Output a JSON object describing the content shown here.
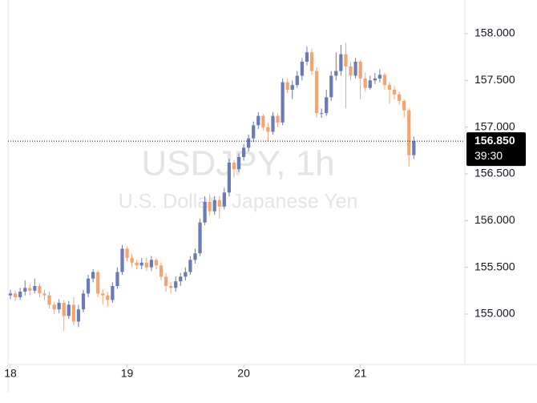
{
  "chart_data": {
    "type": "candlestick",
    "title": "USDJPY, 1h",
    "subtitle": "U.S. Dollar / Japanese Yen",
    "up_color": "#6b7bb3",
    "down_color": "#f4a46f",
    "x": [
      0,
      1,
      2,
      3,
      4,
      5,
      6,
      7,
      8,
      9,
      10,
      11,
      12,
      13,
      14,
      15,
      16,
      17,
      18,
      19,
      20,
      21,
      22,
      23,
      24,
      25,
      26,
      27,
      28,
      29,
      30,
      31,
      32,
      33,
      34,
      35,
      36,
      37,
      38,
      39,
      40,
      41,
      42,
      43,
      44,
      45,
      46,
      47,
      48,
      49,
      50,
      51,
      52,
      53,
      54,
      55,
      56,
      57,
      58,
      59,
      60,
      61,
      62,
      63,
      64,
      65,
      66,
      67,
      68,
      69,
      70,
      71,
      72,
      73,
      74,
      75,
      76,
      77,
      78,
      79,
      80,
      81,
      82,
      83
    ],
    "open": [
      155.2,
      155.22,
      155.18,
      155.24,
      155.28,
      155.25,
      155.3,
      155.22,
      155.2,
      155.1,
      155.05,
      155.12,
      154.98,
      155.1,
      154.92,
      155.05,
      155.22,
      155.38,
      155.45,
      155.22,
      155.2,
      155.15,
      155.3,
      155.45,
      155.7,
      155.6,
      155.55,
      155.52,
      155.55,
      155.5,
      155.58,
      155.52,
      155.4,
      155.3,
      155.28,
      155.35,
      155.4,
      155.45,
      155.58,
      155.65,
      155.98,
      156.2,
      156.1,
      156.22,
      156.15,
      156.3,
      156.62,
      156.55,
      156.68,
      156.78,
      156.88,
      157.02,
      157.12,
      157.0,
      156.95,
      157.12,
      157.05,
      157.48,
      157.4,
      157.45,
      157.55,
      157.7,
      157.8,
      157.6,
      157.15,
      157.15,
      157.32,
      157.55,
      157.6,
      157.78,
      157.65,
      157.55,
      157.7,
      157.52,
      157.42,
      157.5,
      157.52,
      157.56,
      157.45,
      157.4,
      157.35,
      157.28,
      157.18,
      156.7
    ],
    "high": [
      155.26,
      155.25,
      155.28,
      155.36,
      155.32,
      155.38,
      155.33,
      155.26,
      155.24,
      155.13,
      155.16,
      155.15,
      155.14,
      155.18,
      155.1,
      155.26,
      155.42,
      155.48,
      155.47,
      155.26,
      155.24,
      155.34,
      155.5,
      155.74,
      155.72,
      155.64,
      155.58,
      155.6,
      155.6,
      155.62,
      155.6,
      155.55,
      155.44,
      155.34,
      155.4,
      155.44,
      155.5,
      155.62,
      155.7,
      156.02,
      156.26,
      156.28,
      156.26,
      156.26,
      156.35,
      156.66,
      156.65,
      156.72,
      156.82,
      156.92,
      157.06,
      157.16,
      157.14,
      157.05,
      157.16,
      157.15,
      157.52,
      157.52,
      157.5,
      157.6,
      157.74,
      157.86,
      157.84,
      157.64,
      157.2,
      157.4,
      157.6,
      157.8,
      157.88,
      157.9,
      157.7,
      157.74,
      157.72,
      157.58,
      157.55,
      157.58,
      157.62,
      157.58,
      157.48,
      157.44,
      157.38,
      157.3,
      157.2,
      156.9
    ],
    "low": [
      155.16,
      155.14,
      155.15,
      155.2,
      155.2,
      155.22,
      155.18,
      155.15,
      155.06,
      155.0,
      155.01,
      154.82,
      154.95,
      154.88,
      154.86,
      155.02,
      155.18,
      155.34,
      155.18,
      155.1,
      155.08,
      155.12,
      155.27,
      155.42,
      155.56,
      155.5,
      155.48,
      155.48,
      155.46,
      155.46,
      155.48,
      155.36,
      155.24,
      155.22,
      155.24,
      155.3,
      155.36,
      155.42,
      155.54,
      155.62,
      155.95,
      156.05,
      156.06,
      156.02,
      156.12,
      156.26,
      156.46,
      156.52,
      156.64,
      156.74,
      156.84,
      156.98,
      156.96,
      156.85,
      156.92,
      157.0,
      157.02,
      157.36,
      157.3,
      157.42,
      157.5,
      157.66,
      157.56,
      157.1,
      157.1,
      157.12,
      157.28,
      157.5,
      157.55,
      157.2,
      157.5,
      157.52,
      157.3,
      157.38,
      157.4,
      157.46,
      157.48,
      157.4,
      157.25,
      157.3,
      157.24,
      157.1,
      156.58,
      156.66
    ],
    "close": [
      155.22,
      155.18,
      155.24,
      155.28,
      155.25,
      155.3,
      155.22,
      155.2,
      155.1,
      155.05,
      155.12,
      154.98,
      155.1,
      154.92,
      155.05,
      155.22,
      155.38,
      155.45,
      155.22,
      155.2,
      155.15,
      155.3,
      155.45,
      155.7,
      155.6,
      155.55,
      155.52,
      155.55,
      155.5,
      155.58,
      155.52,
      155.4,
      155.3,
      155.28,
      155.35,
      155.4,
      155.45,
      155.58,
      155.65,
      155.98,
      156.2,
      156.1,
      156.22,
      156.15,
      156.3,
      156.62,
      156.55,
      156.68,
      156.78,
      156.88,
      157.02,
      157.12,
      157.0,
      156.95,
      157.12,
      157.05,
      157.48,
      157.4,
      157.45,
      157.55,
      157.7,
      157.8,
      157.6,
      157.15,
      157.15,
      157.32,
      157.55,
      157.6,
      157.78,
      157.65,
      157.55,
      157.7,
      157.52,
      157.42,
      157.5,
      157.52,
      157.56,
      157.45,
      157.4,
      157.35,
      157.28,
      157.18,
      156.7,
      156.85
    ],
    "xlim": [
      -0.5,
      93.5
    ],
    "xticks": [
      {
        "value": 0,
        "label": "18"
      },
      {
        "value": 24,
        "label": "19"
      },
      {
        "value": 48,
        "label": "20"
      },
      {
        "value": 72,
        "label": "21"
      }
    ],
    "ylim": [
      154.46,
      158.36
    ],
    "yticks": [
      {
        "value": 155,
        "label": "155.000"
      },
      {
        "value": 155.5,
        "label": "155.500"
      },
      {
        "value": 156,
        "label": "156.000"
      },
      {
        "value": 156.5,
        "label": "156.500"
      },
      {
        "value": 157,
        "label": "157.000"
      },
      {
        "value": 157.5,
        "label": "157.500"
      },
      {
        "value": 158,
        "label": "158.000"
      }
    ],
    "last_price": {
      "value": 156.85,
      "label": "156.850"
    },
    "countdown": "39:30"
  }
}
